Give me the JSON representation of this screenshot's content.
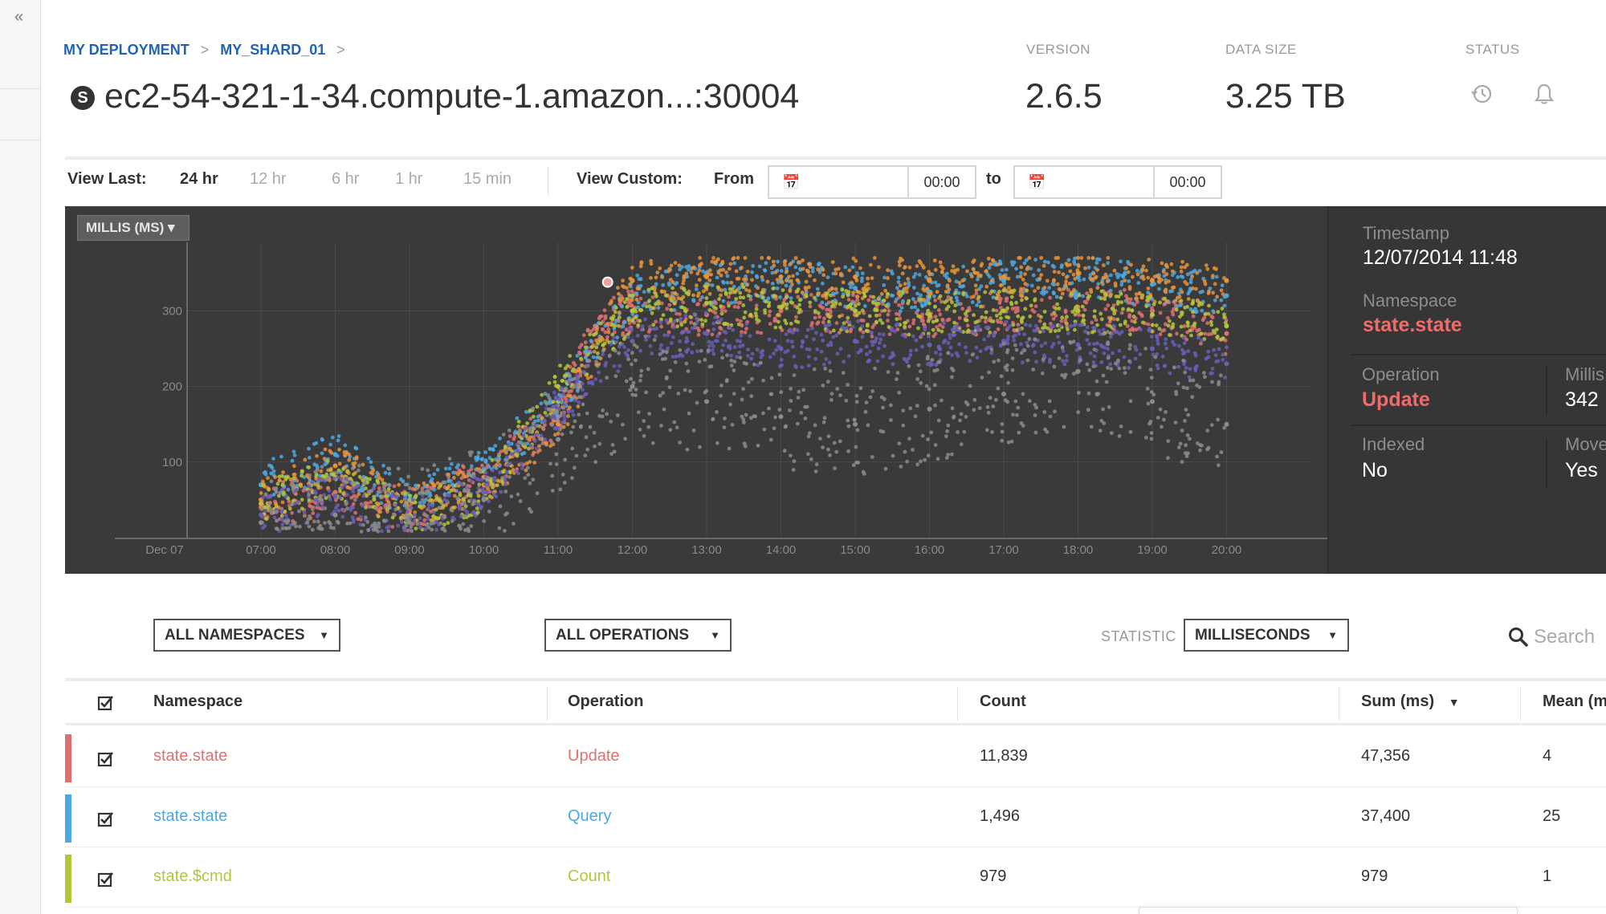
{
  "breadcrumb": [
    {
      "label": "MY DEPLOYMENT"
    },
    {
      "label": "MY_SHARD_01"
    }
  ],
  "breadcrumb_sep": ">",
  "host": "ec2-54-321-1-34.compute-1.amazon...:30004",
  "meta": {
    "version_label": "VERSION",
    "version": "2.6.5",
    "data_size_label": "DATA SIZE",
    "data_size": "3.25 TB",
    "status_label": "STATUS"
  },
  "time_range": {
    "view_last_label": "View Last:",
    "options": [
      "24 hr",
      "12 hr",
      "6 hr",
      "1 hr",
      "15 min"
    ],
    "selected": "24 hr",
    "view_custom_label": "View Custom:",
    "from_label": "From",
    "from_time": "00:00",
    "to_label": "to",
    "to_time": "00:00"
  },
  "unit_selector": "MILLIS (MS)",
  "chart_data": {
    "type": "scatter",
    "title": "",
    "xlabel": "",
    "ylabel": "",
    "x_ticks": [
      "Dec 07",
      "07:00",
      "08:00",
      "09:00",
      "10:00",
      "11:00",
      "12:00",
      "13:00",
      "14:00",
      "15:00",
      "16:00",
      "17:00",
      "18:00",
      "19:00",
      "20:00"
    ],
    "y_ticks": [
      100,
      200,
      300
    ],
    "ylim": [
      0,
      380
    ],
    "grid": true,
    "highlighted_point": {
      "x": "11:40",
      "y": 338
    },
    "series": [
      {
        "color": "#e07070",
        "points": [
          [
            "07:00",
            40
          ],
          [
            "08:00",
            60
          ],
          [
            "09:00",
            35
          ],
          [
            "10:00",
            80
          ],
          [
            "11:00",
            160
          ],
          [
            "11:30",
            280
          ],
          [
            "12:00",
            300
          ],
          [
            "13:00",
            295
          ],
          [
            "14:00",
            300
          ],
          [
            "15:00",
            295
          ],
          [
            "16:00",
            290
          ],
          [
            "17:00",
            300
          ],
          [
            "18:00",
            305
          ],
          [
            "19:00",
            300
          ],
          [
            "20:00",
            270
          ]
        ]
      },
      {
        "color": "#4ba8e0",
        "points": [
          [
            "07:00",
            70
          ],
          [
            "08:00",
            110
          ],
          [
            "09:00",
            50
          ],
          [
            "10:00",
            90
          ],
          [
            "11:00",
            180
          ],
          [
            "12:00",
            320
          ],
          [
            "13:00",
            335
          ],
          [
            "14:00",
            340
          ],
          [
            "15:00",
            330
          ],
          [
            "16:00",
            325
          ],
          [
            "17:00",
            340
          ],
          [
            "18:00",
            345
          ],
          [
            "19:00",
            335
          ],
          [
            "20:00",
            320
          ]
        ]
      },
      {
        "color": "#e8923a",
        "points": [
          [
            "07:00",
            50
          ],
          [
            "08:00",
            95
          ],
          [
            "09:00",
            40
          ],
          [
            "10:00",
            70
          ],
          [
            "11:00",
            150
          ],
          [
            "12:00",
            340
          ],
          [
            "13:00",
            345
          ],
          [
            "14:00",
            345
          ],
          [
            "15:00",
            345
          ],
          [
            "16:00",
            340
          ],
          [
            "17:00",
            345
          ],
          [
            "18:00",
            350
          ],
          [
            "19:00",
            340
          ],
          [
            "20:00",
            340
          ]
        ]
      },
      {
        "color": "#b5c43a",
        "points": [
          [
            "07:00",
            45
          ],
          [
            "08:00",
            80
          ],
          [
            "09:00",
            30
          ],
          [
            "10:00",
            60
          ],
          [
            "11:00",
            200
          ],
          [
            "12:00",
            300
          ],
          [
            "13:00",
            310
          ],
          [
            "14:00",
            305
          ],
          [
            "15:00",
            300
          ],
          [
            "16:00",
            295
          ],
          [
            "17:00",
            300
          ],
          [
            "18:00",
            300
          ],
          [
            "19:00",
            295
          ],
          [
            "20:00",
            280
          ]
        ]
      },
      {
        "color": "#6a5fb8",
        "points": [
          [
            "07:00",
            30
          ],
          [
            "08:00",
            55
          ],
          [
            "09:00",
            25
          ],
          [
            "10:00",
            60
          ],
          [
            "11:00",
            170
          ],
          [
            "12:00",
            260
          ],
          [
            "13:00",
            270
          ],
          [
            "14:00",
            250
          ],
          [
            "15:00",
            260
          ],
          [
            "16:00",
            255
          ],
          [
            "17:00",
            260
          ],
          [
            "18:00",
            255
          ],
          [
            "19:00",
            250
          ],
          [
            "20:00",
            230
          ]
        ]
      },
      {
        "color": "#8c8c8c",
        "points": [
          [
            "07:00",
            20
          ],
          [
            "08:00",
            30
          ],
          [
            "09:00",
            20
          ],
          [
            "10:00",
            50
          ],
          [
            "11:00",
            130
          ],
          [
            "12:00",
            200
          ],
          [
            "13:00",
            180
          ],
          [
            "14:00",
            160
          ],
          [
            "15:00",
            150
          ],
          [
            "16:00",
            170
          ],
          [
            "17:00",
            190
          ],
          [
            "18:00",
            220
          ],
          [
            "19:00",
            180
          ],
          [
            "20:00",
            150
          ]
        ]
      }
    ]
  },
  "detail": {
    "timestamp_label": "Timestamp",
    "timestamp": "12/07/2014  11:48",
    "namespace_label": "Namespace",
    "namespace": "state.state",
    "operation_label": "Operation",
    "operation": "Update",
    "millis_label": "Millis",
    "millis": "342",
    "indexed_label": "Indexed",
    "indexed": "No",
    "moved_label": "Moved",
    "moved": "Yes"
  },
  "filters": {
    "namespaces": "ALL NAMESPACES",
    "operations": "ALL OPERATIONS",
    "statistic_label": "STATISTIC",
    "statistic": "MILLISECONDS",
    "search_placeholder": "Search"
  },
  "table": {
    "columns": [
      "Namespace",
      "Operation",
      "Count",
      "Sum (ms)",
      "Mean (ms)"
    ],
    "rows": [
      {
        "color": "#e07070",
        "namespace": "state.state",
        "operation": "Update",
        "count": "11,839",
        "sum": "47,356",
        "mean": "4"
      },
      {
        "color": "#4ba8e0",
        "namespace": "state.state",
        "operation": "Query",
        "count": "1,496",
        "sum": "37,400",
        "mean": "25"
      },
      {
        "color": "#b5c43a",
        "namespace": "state.$cmd",
        "operation": "Count",
        "count": "979",
        "sum": "979",
        "mean": "1"
      }
    ]
  }
}
